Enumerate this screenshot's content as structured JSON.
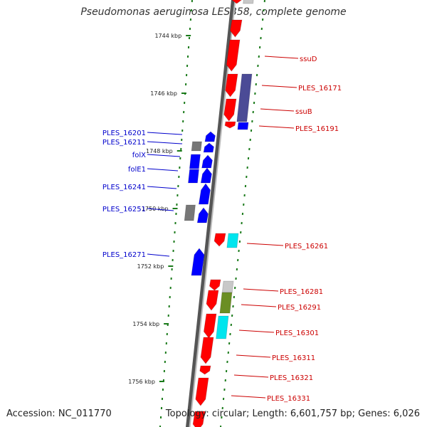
{
  "title": "Pseudomonas aeruginosa LESB58, complete genome",
  "accession": "Accession: NC_011770",
  "topology": "Topology: circular; Length: 6,601,757 bp; Genes: 6,026",
  "colors": {
    "reverse_strand": "#ff0000",
    "forward_strand": "#0000ff",
    "tick": "#1a7a1a",
    "backbone": "#888888",
    "gray_feature": "#777777",
    "cyan_feature": "#00e5ee",
    "olive_feature": "#6b8e23",
    "navy_feature": "#4b4b96",
    "silver_feature": "#c8c8c8"
  },
  "kbp_ticks": [
    "1744 kbp",
    "1746 kbp",
    "1748 kbp",
    "1750 kbp",
    "1752 kbp",
    "1754 kbp",
    "1756 kbp"
  ],
  "left_labels": [
    "PLES_16201",
    "PLES_16211",
    "folX",
    "folE1",
    "PLES_16241",
    "PLES_16251",
    "PLES_16271"
  ],
  "right_labels": [
    "ssuD",
    "PLES_16171",
    "ssuB",
    "PLES_16191",
    "PLES_16261",
    "PLES_16281",
    "PLES_16291",
    "PLES_16301",
    "PLES_16311",
    "PLES_16321",
    "PLES_16331"
  ]
}
